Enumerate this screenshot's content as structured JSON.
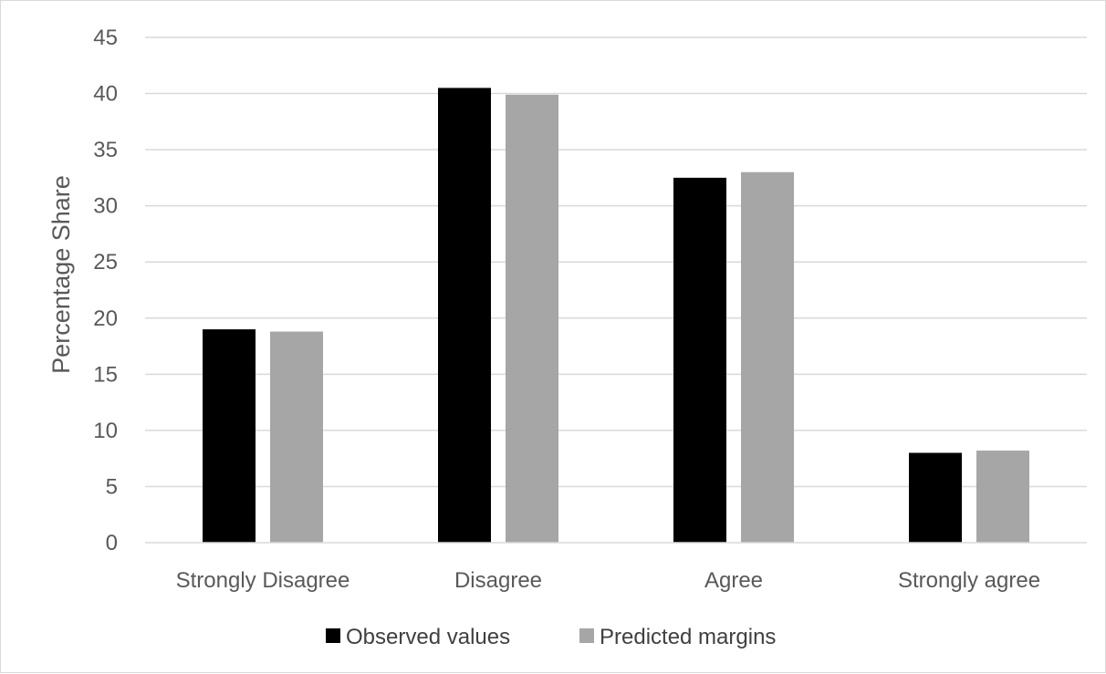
{
  "chart_data": {
    "type": "bar",
    "title": "",
    "xlabel": "",
    "ylabel": "Percentage Share",
    "categories": [
      "Strongly Disagree",
      "Disagree",
      "Agree",
      "Strongly agree"
    ],
    "series": [
      {
        "name": "Observed values",
        "values": [
          19.0,
          40.5,
          32.5,
          8.0
        ],
        "color": "#000000"
      },
      {
        "name": "Predicted margins",
        "values": [
          18.8,
          39.9,
          33.0,
          8.2
        ],
        "color": "#a6a6a6"
      }
    ],
    "ylim": [
      0,
      45
    ],
    "yticks": [
      0,
      5,
      10,
      15,
      20,
      25,
      30,
      35,
      40,
      45
    ],
    "grid": true,
    "gridline_color": "#d9d9d9",
    "legend_position": "bottom"
  }
}
